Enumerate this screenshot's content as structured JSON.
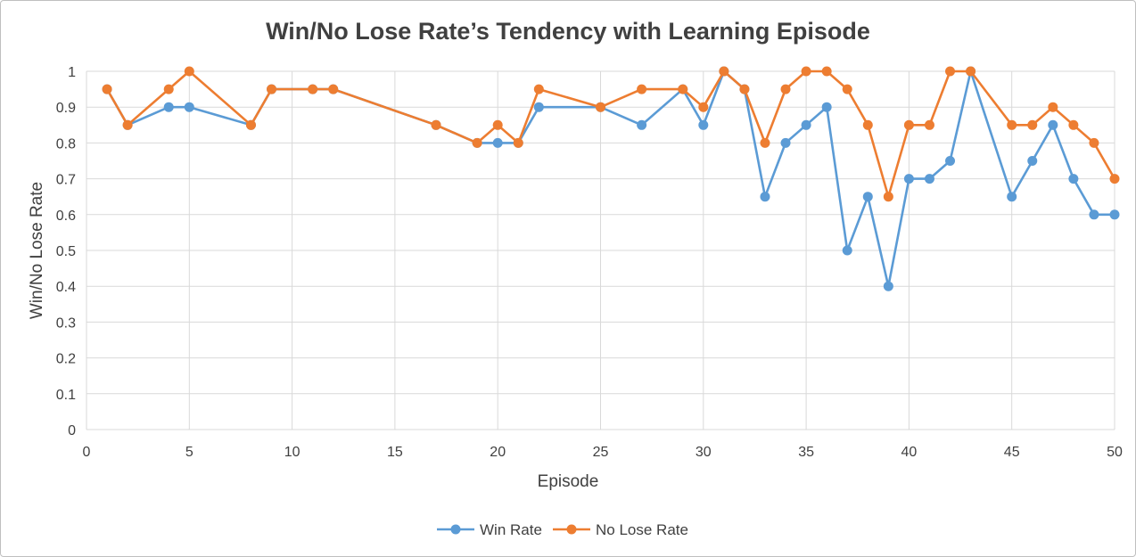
{
  "chart_data": {
    "type": "line",
    "title": "Win/No Lose Rate’s Tendency with Learning Episode",
    "xlabel": "Episode",
    "ylabel": "Win/No Lose Rate",
    "xlim": [
      0,
      50
    ],
    "ylim": [
      0,
      1
    ],
    "x_ticks": [
      "0",
      "5",
      "10",
      "15",
      "20",
      "25",
      "30",
      "35",
      "40",
      "45",
      "50"
    ],
    "y_ticks": [
      "0",
      "0.1",
      "0.2",
      "0.3",
      "0.4",
      "0.5",
      "0.6",
      "0.7",
      "0.8",
      "0.9",
      "1"
    ],
    "grid": true,
    "legend_position": "bottom",
    "x": [
      1,
      2,
      4,
      5,
      8,
      9,
      11,
      12,
      17,
      19,
      20,
      21,
      22,
      25,
      27,
      29,
      30,
      31,
      32,
      33,
      34,
      35,
      36,
      37,
      38,
      39,
      40,
      41,
      42,
      43,
      45,
      46,
      47,
      48,
      49,
      50
    ],
    "series": [
      {
        "name": "Win Rate",
        "color": "#5b9bd5",
        "values": [
          0.95,
          0.85,
          0.9,
          0.9,
          0.85,
          0.95,
          0.95,
          0.95,
          0.85,
          0.8,
          0.8,
          0.8,
          0.9,
          0.9,
          0.85,
          0.95,
          0.85,
          1,
          0.95,
          0.65,
          0.8,
          0.85,
          0.9,
          0.5,
          0.65,
          0.4,
          0.7,
          0.7,
          0.75,
          1,
          0.65,
          0.75,
          0.85,
          0.7,
          0.6,
          0.6
        ]
      },
      {
        "name": "No Lose Rate",
        "color": "#ed7d31",
        "values": [
          0.95,
          0.85,
          0.95,
          1,
          0.85,
          0.95,
          0.95,
          0.95,
          0.85,
          0.8,
          0.85,
          0.8,
          0.95,
          0.9,
          0.95,
          0.95,
          0.9,
          1,
          0.95,
          0.8,
          0.95,
          1,
          1,
          0.95,
          0.85,
          0.65,
          0.85,
          0.85,
          1,
          1,
          0.85,
          0.85,
          0.9,
          0.85,
          0.8,
          0.7
        ]
      }
    ]
  }
}
